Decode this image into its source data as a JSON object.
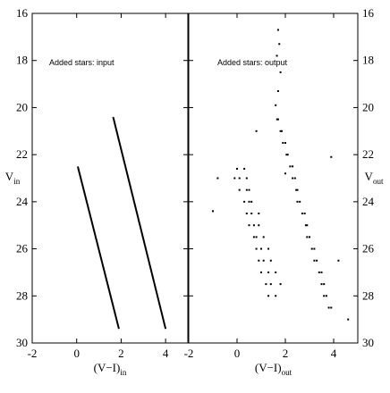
{
  "chart_data": [
    {
      "type": "line",
      "annotation": "Added stars: input",
      "xlabel": "(V−I)",
      "xlabel_sub": "in",
      "ylabel": "V",
      "ylabel_sub": "in",
      "xlim": [
        -2,
        5
      ],
      "ylim": [
        30,
        16
      ],
      "xticks": [
        -2,
        0,
        2,
        4
      ],
      "yticks": [
        16,
        18,
        20,
        22,
        24,
        26,
        28,
        30
      ],
      "ytick_side": "left",
      "color": "#000000",
      "series": [
        {
          "x": [
            0.05,
            1.9
          ],
          "values": [
            22.5,
            29.4
          ]
        },
        {
          "x": [
            1.64,
            4.0
          ],
          "values": [
            20.4,
            29.4
          ]
        }
      ]
    },
    {
      "type": "scatter",
      "annotation": "Added stars: output",
      "xlabel": "(V−I)",
      "xlabel_sub": "out",
      "ylabel": "V",
      "ylabel_sub": "out",
      "xlim": [
        -2,
        5
      ],
      "ylim": [
        30,
        16
      ],
      "xticks": [
        -2,
        0,
        2,
        4
      ],
      "yticks": [
        16,
        18,
        20,
        22,
        24,
        26,
        28,
        30
      ],
      "ytick_side": "right",
      "color": "#000000",
      "x": [
        0.0,
        0.3,
        0.1,
        -0.1,
        0.4,
        0.4,
        0.1,
        0.5,
        0.3,
        0.6,
        0.5,
        0.6,
        0.4,
        0.9,
        0.7,
        0.9,
        0.5,
        0.8,
        1.1,
        0.7,
        1.0,
        0.8,
        1.3,
        1.1,
        1.4,
        0.9,
        1.3,
        1.0,
        1.6,
        1.4,
        1.2,
        1.8,
        1.6,
        1.3,
        -0.8,
        -1.0,
        2.0,
        1.66,
        1.7,
        1.8,
        1.85,
        1.9,
        2.0,
        2.05,
        2.1,
        2.2,
        2.3,
        2.3,
        2.4,
        2.45,
        2.5,
        2.6,
        2.5,
        2.7,
        2.8,
        2.85,
        2.9,
        3.0,
        2.9,
        3.1,
        3.2,
        3.3,
        3.2,
        3.4,
        3.5,
        3.5,
        3.6,
        3.7,
        3.6,
        3.8,
        3.9,
        1.7,
        1.75,
        1.65,
        1.8,
        1.7,
        1.6,
        3.9,
        4.2,
        4.6,
        0.8
      ],
      "values": [
        22.6,
        22.6,
        23.0,
        23.0,
        23.0,
        23.5,
        23.5,
        23.5,
        24.0,
        24.0,
        24.0,
        24.5,
        24.5,
        24.5,
        25.0,
        25.0,
        25.0,
        25.5,
        25.5,
        25.5,
        26.0,
        26.0,
        26.0,
        26.5,
        26.5,
        26.5,
        27.0,
        27.0,
        27.0,
        27.5,
        27.5,
        27.5,
        28.0,
        28.0,
        23.0,
        24.4,
        22.8,
        20.5,
        20.5,
        21.0,
        21.0,
        21.5,
        21.5,
        22.0,
        22.0,
        22.5,
        22.5,
        23.0,
        23.0,
        23.5,
        23.5,
        24.0,
        24.0,
        24.5,
        24.5,
        25.0,
        25.0,
        25.5,
        25.5,
        26.0,
        26.0,
        26.5,
        26.5,
        27.0,
        27.0,
        27.5,
        27.5,
        28.0,
        28.0,
        28.5,
        28.5,
        16.7,
        17.3,
        17.8,
        18.5,
        19.3,
        19.9,
        22.1,
        26.5,
        29.0,
        21.0
      ]
    }
  ]
}
